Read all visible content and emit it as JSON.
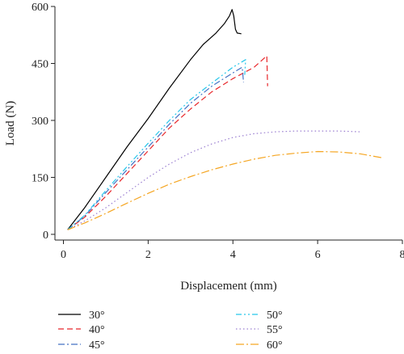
{
  "chart_data": {
    "type": "line",
    "xlabel": "Displacement (mm)",
    "ylabel": "Load (N)",
    "xlim": [
      -0.2,
      8
    ],
    "ylim": [
      -15,
      600
    ],
    "xticks": [
      0,
      2,
      4,
      6,
      8
    ],
    "yticks": [
      0,
      150,
      300,
      450,
      600
    ],
    "xtick_labels": [
      "0",
      "2",
      "4",
      "6",
      "8"
    ],
    "ytick_labels": [
      "0",
      "150",
      "300",
      "450",
      "600"
    ],
    "grid": false,
    "legend_position": "bottom",
    "series": [
      {
        "name": "30°",
        "color": "#000000",
        "dash": "solid",
        "points": [
          [
            0.1,
            12
          ],
          [
            0.5,
            70
          ],
          [
            1.0,
            150
          ],
          [
            1.5,
            230
          ],
          [
            2.0,
            305
          ],
          [
            2.5,
            385
          ],
          [
            3.0,
            460
          ],
          [
            3.3,
            500
          ],
          [
            3.6,
            530
          ],
          [
            3.8,
            555
          ],
          [
            3.92,
            575
          ],
          [
            3.98,
            592
          ],
          [
            4.02,
            575
          ],
          [
            4.06,
            540
          ],
          [
            4.1,
            530
          ],
          [
            4.2,
            528
          ]
        ]
      },
      {
        "name": "40°",
        "color": "#e8262a",
        "dash": "dashed",
        "points": [
          [
            0.1,
            12
          ],
          [
            0.5,
            45
          ],
          [
            1.0,
            100
          ],
          [
            1.5,
            160
          ],
          [
            2.0,
            220
          ],
          [
            2.5,
            280
          ],
          [
            3.0,
            330
          ],
          [
            3.5,
            375
          ],
          [
            4.0,
            410
          ],
          [
            4.5,
            440
          ],
          [
            4.8,
            470
          ],
          [
            4.82,
            390
          ]
        ]
      },
      {
        "name": "45°",
        "color": "#4472c4",
        "dash": "dash-dot",
        "points": [
          [
            0.1,
            12
          ],
          [
            0.5,
            48
          ],
          [
            1.0,
            110
          ],
          [
            1.5,
            170
          ],
          [
            2.0,
            230
          ],
          [
            2.5,
            290
          ],
          [
            3.0,
            345
          ],
          [
            3.5,
            390
          ],
          [
            4.0,
            425
          ],
          [
            4.22,
            440
          ],
          [
            4.25,
            400
          ]
        ]
      },
      {
        "name": "50°",
        "color": "#26c6ea",
        "dash": "dash-dot-dot",
        "points": [
          [
            0.1,
            12
          ],
          [
            0.5,
            50
          ],
          [
            1.0,
            115
          ],
          [
            1.5,
            178
          ],
          [
            2.0,
            240
          ],
          [
            2.5,
            300
          ],
          [
            3.0,
            355
          ],
          [
            3.5,
            398
          ],
          [
            4.0,
            440
          ],
          [
            4.3,
            460
          ],
          [
            4.28,
            420
          ]
        ]
      },
      {
        "name": "55°",
        "color": "#9b7fd1",
        "dash": "dotted",
        "points": [
          [
            0.1,
            12
          ],
          [
            0.5,
            35
          ],
          [
            1.0,
            70
          ],
          [
            1.5,
            110
          ],
          [
            2.0,
            150
          ],
          [
            2.5,
            185
          ],
          [
            3.0,
            215
          ],
          [
            3.5,
            238
          ],
          [
            4.0,
            255
          ],
          [
            4.5,
            265
          ],
          [
            5.0,
            270
          ],
          [
            5.5,
            272
          ],
          [
            6.0,
            272
          ],
          [
            6.5,
            272
          ],
          [
            7.0,
            270
          ]
        ]
      },
      {
        "name": "60°",
        "color": "#f5a623",
        "dash": "long-dash-dot",
        "points": [
          [
            0.1,
            12
          ],
          [
            0.5,
            30
          ],
          [
            1.0,
            55
          ],
          [
            1.5,
            82
          ],
          [
            2.0,
            108
          ],
          [
            2.5,
            132
          ],
          [
            3.0,
            152
          ],
          [
            3.5,
            170
          ],
          [
            4.0,
            185
          ],
          [
            4.5,
            198
          ],
          [
            5.0,
            208
          ],
          [
            5.5,
            214
          ],
          [
            6.0,
            218
          ],
          [
            6.5,
            217
          ],
          [
            7.0,
            212
          ],
          [
            7.5,
            202
          ]
        ]
      }
    ]
  }
}
